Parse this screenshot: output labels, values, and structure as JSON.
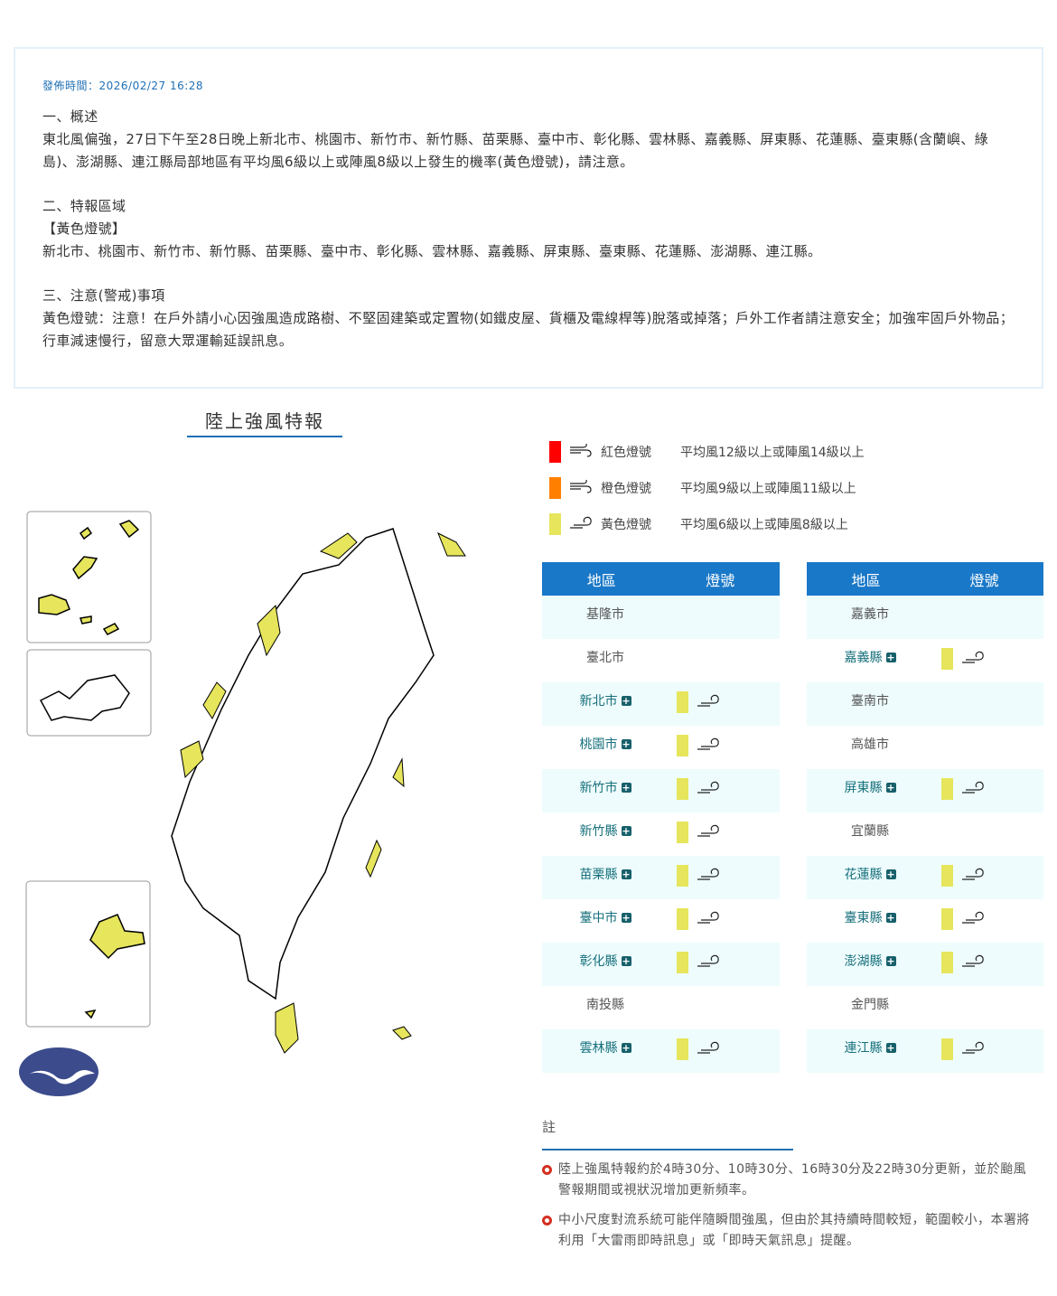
{
  "notice": {
    "pubtime": "發佈時間：2026/02/27 16:28",
    "s1_title": "一、概述",
    "s1_body": "東北風偏強，27日下午至28日晚上新北市、桃園市、新竹市、新竹縣、苗栗縣、臺中市、彰化縣、雲林縣、嘉義縣、屏東縣、花蓮縣、臺東縣(含蘭嶼、綠島)、澎湖縣、連江縣局部地區有平均風6級以上或陣風8級以上發生的機率(黃色燈號)，請注意。",
    "s2_title": "二、特報區域",
    "s2_level": "【黃色燈號】",
    "s2_body": "新北市、桃園市、新竹市、新竹縣、苗栗縣、臺中市、彰化縣、雲林縣、嘉義縣、屏東縣、臺東縣、花蓮縣、澎湖縣、連江縣。",
    "s3_title": "三、注意(警戒)事項",
    "s3_body": "黃色燈號：注意！在戶外請小心因強風造成路樹、不堅固建築或定置物(如鐵皮屋、貨櫃及電線桿等)脫落或掉落；戶外工作者請注意安全；加強牢固戶外物品；行車減速慢行，留意大眾運輸延誤訊息。"
  },
  "map_title": "陸上強風特報",
  "legend": [
    {
      "color": "#ff0000",
      "icon": "strong-wind-icon",
      "name": "紅色燈號",
      "desc": "平均風12級以上或陣風14級以上"
    },
    {
      "color": "#ff7f00",
      "icon": "strong-wind-icon",
      "name": "橙色燈號",
      "desc": "平均風9級以上或陣風11級以上"
    },
    {
      "color": "#e6e55c",
      "icon": "wind-icon",
      "name": "黃色燈號",
      "desc": "平均風6級以上或陣風8級以上"
    }
  ],
  "table_headers": {
    "region": "地區",
    "signal": "燈號"
  },
  "left_rows": [
    {
      "name": "基隆市",
      "warn": false
    },
    {
      "name": "臺北市",
      "warn": false
    },
    {
      "name": "新北市",
      "warn": true
    },
    {
      "name": "桃園市",
      "warn": true
    },
    {
      "name": "新竹市",
      "warn": true
    },
    {
      "name": "新竹縣",
      "warn": true
    },
    {
      "name": "苗栗縣",
      "warn": true
    },
    {
      "name": "臺中市",
      "warn": true
    },
    {
      "name": "彰化縣",
      "warn": true
    },
    {
      "name": "南投縣",
      "warn": false
    },
    {
      "name": "雲林縣",
      "warn": true
    }
  ],
  "right_rows": [
    {
      "name": "嘉義市",
      "warn": false
    },
    {
      "name": "嘉義縣",
      "warn": true
    },
    {
      "name": "臺南市",
      "warn": false
    },
    {
      "name": "高雄市",
      "warn": false
    },
    {
      "name": "屏東縣",
      "warn": true
    },
    {
      "name": "宜蘭縣",
      "warn": false
    },
    {
      "name": "花蓮縣",
      "warn": true
    },
    {
      "name": "臺東縣",
      "warn": true
    },
    {
      "name": "澎湖縣",
      "warn": true
    },
    {
      "name": "金門縣",
      "warn": false
    },
    {
      "name": "連江縣",
      "warn": true
    }
  ],
  "notes": {
    "title": "註",
    "items": [
      "陸上強風特報約於4時30分、10時30分、16時30分及22時30分更新，並於颱風警報期間或視狀況增加更新頻率。",
      "中小尺度對流系統可能伴隨瞬間強風，但由於其持續時間較短，範圍較小，本署將利用「大雷雨即時訊息」或「即時天氣訊息」提醒。"
    ]
  },
  "colors": {
    "accent": "#1a78c8",
    "yellow": "#e6e55c",
    "row_alt": "#eefcfd"
  }
}
